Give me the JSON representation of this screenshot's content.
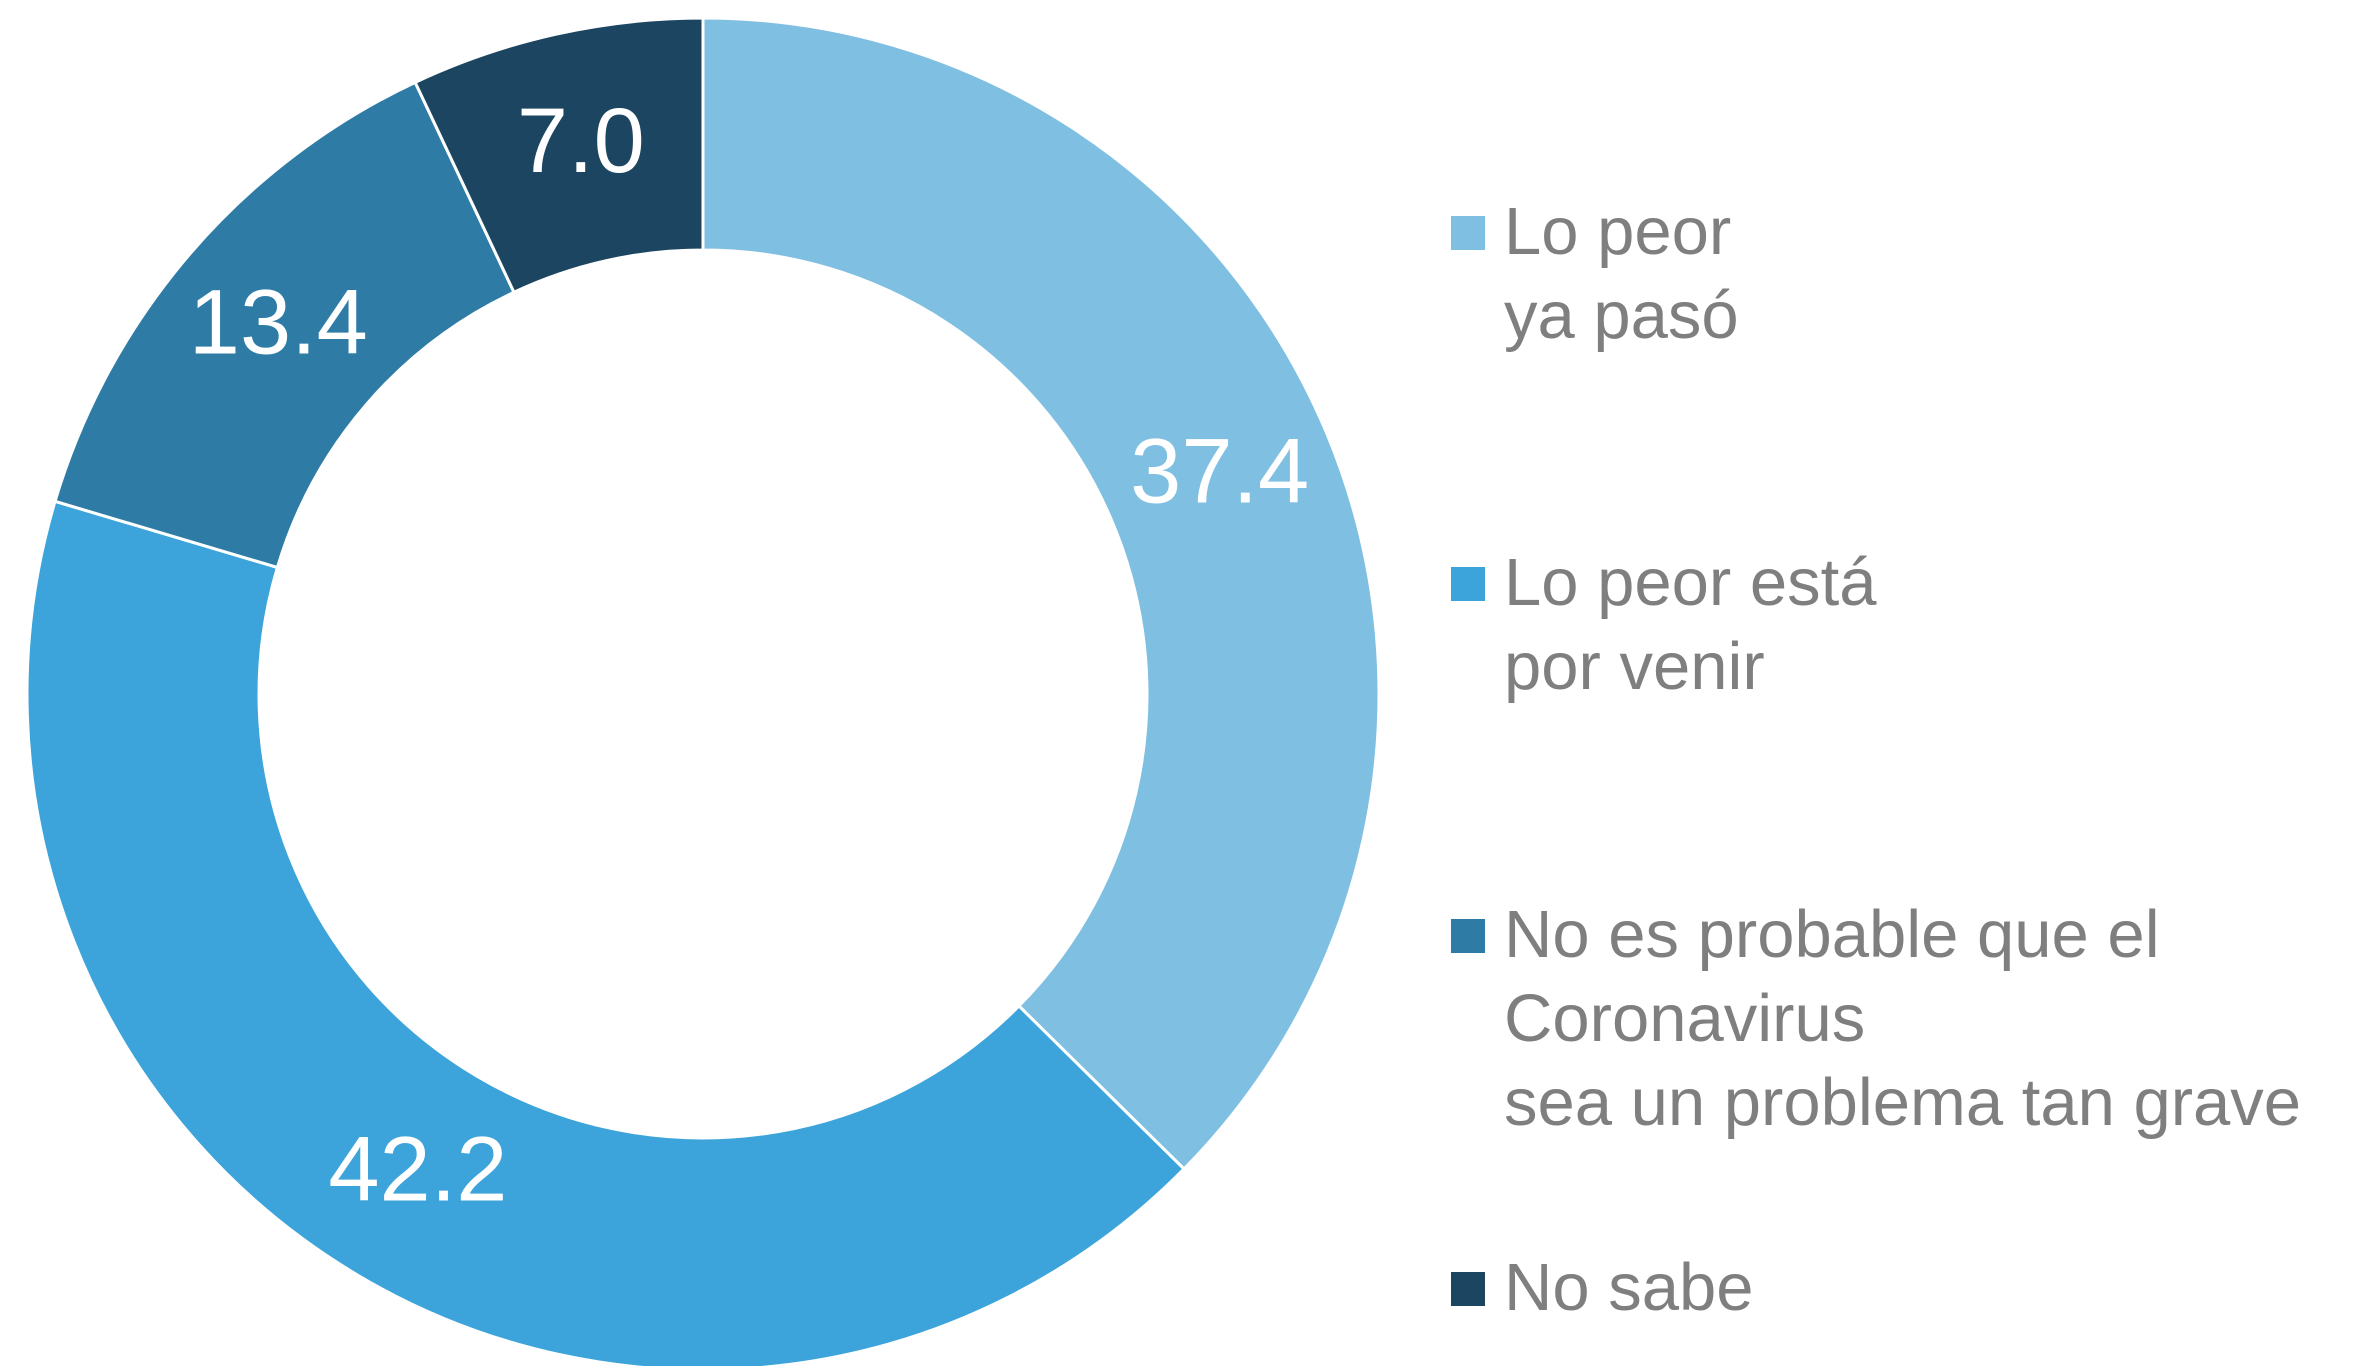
{
  "chart_data": {
    "type": "donut",
    "categories": [
      "Lo peor\nya pasó",
      "Lo peor está\npor venir",
      "No es probable que el\nCoronavirus\nsea un problema tan grave",
      "No sabe"
    ],
    "values": [
      37.4,
      42.2,
      13.4,
      7.0
    ],
    "value_labels": [
      "37.4",
      "42.2",
      "13.4",
      "7.0"
    ],
    "colors": [
      "#7fbfe2",
      "#3ca4da",
      "#2e7ca6",
      "#1b4560"
    ],
    "legend": "right"
  }
}
